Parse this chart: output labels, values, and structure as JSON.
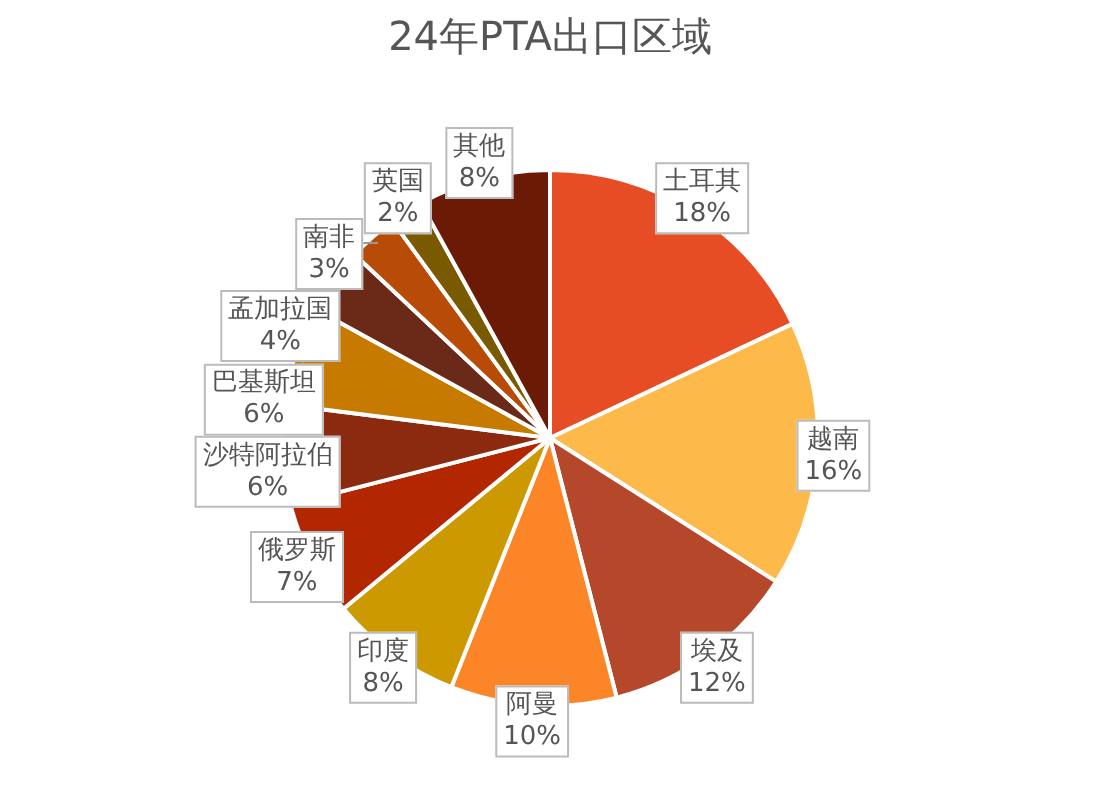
{
  "chart_data": {
    "type": "pie",
    "title": "24年PTA出口区域",
    "categories": [
      "土耳其",
      "越南",
      "埃及",
      "阿曼",
      "印度",
      "俄罗斯",
      "沙特阿拉伯",
      "巴基斯坦",
      "孟加拉国",
      "南非",
      "英国",
      "其他"
    ],
    "values": [
      18,
      16,
      12,
      10,
      8,
      7,
      6,
      6,
      4,
      3,
      2,
      8
    ],
    "colors": [
      "#e64d25",
      "#fdb94a",
      "#b5482a",
      "#fc8527",
      "#cc9a00",
      "#b22600",
      "#8c2a10",
      "#c67b00",
      "#6b2a17",
      "#b84b06",
      "#7a5a00",
      "#6b1a05"
    ],
    "value_labels": [
      "18%",
      "16%",
      "12%",
      "10%",
      "8%",
      "7%",
      "6%",
      "6%",
      "4%",
      "3%",
      "2%",
      "8%"
    ],
    "legend": false
  }
}
